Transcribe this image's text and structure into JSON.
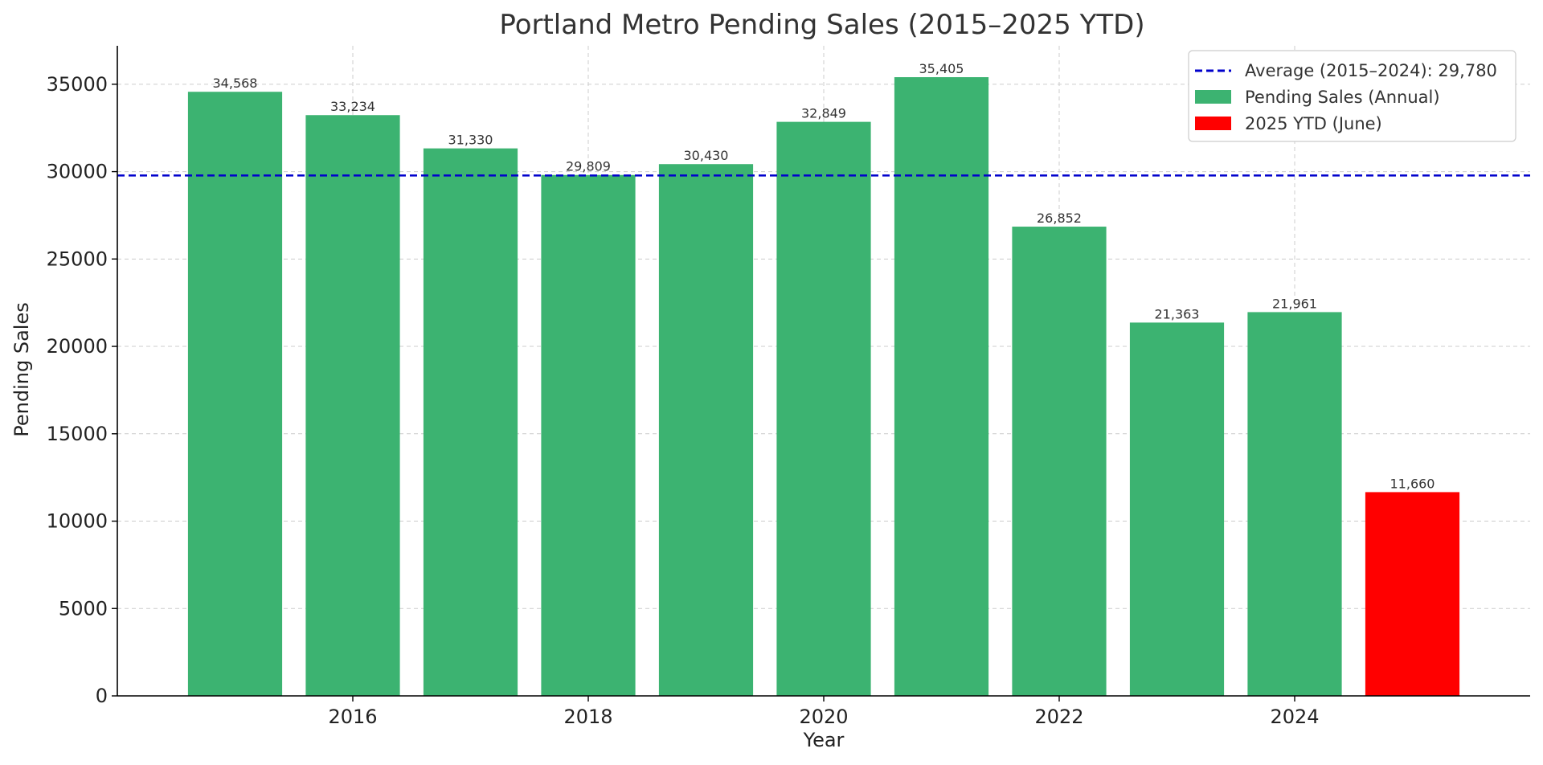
{
  "chart_data": {
    "type": "bar",
    "title": "Portland Metro Pending Sales (2015–2025 YTD)",
    "xlabel": "Year",
    "ylabel": "Pending Sales",
    "x": [
      2015,
      2016,
      2017,
      2018,
      2019,
      2020,
      2021,
      2022,
      2023,
      2024,
      2025
    ],
    "values": [
      34568,
      33234,
      31330,
      29809,
      30430,
      32849,
      35405,
      26852,
      21363,
      21961,
      11660
    ],
    "value_labels": [
      "34,568",
      "33,234",
      "31,330",
      "29,809",
      "30,430",
      "32,849",
      "35,405",
      "26,852",
      "21,363",
      "21,961",
      "11,660"
    ],
    "series": [
      {
        "name": "Pending Sales (Annual)",
        "x": [
          2015,
          2016,
          2017,
          2018,
          2019,
          2020,
          2021,
          2022,
          2023,
          2024
        ],
        "color": "#3cb371"
      },
      {
        "name": "2025 YTD (June)",
        "x": [
          2025
        ],
        "color": "#ff0000"
      }
    ],
    "reference_line": {
      "name": "Average (2015–2024): 29,780",
      "value": 29780,
      "color": "#0000cc",
      "style": "dashed"
    },
    "xlim": [
      2014,
      2026
    ],
    "ylim": [
      0,
      37200
    ],
    "xticks": [
      2016,
      2018,
      2020,
      2022,
      2024
    ],
    "xtick_labels": [
      "2016",
      "2018",
      "2020",
      "2022",
      "2024"
    ],
    "yticks": [
      0,
      5000,
      10000,
      15000,
      20000,
      25000,
      30000,
      35000
    ],
    "ytick_labels": [
      "0",
      "5000",
      "10000",
      "15000",
      "20000",
      "25000",
      "30000",
      "35000"
    ],
    "grid": true,
    "legend_position": "top-right"
  }
}
